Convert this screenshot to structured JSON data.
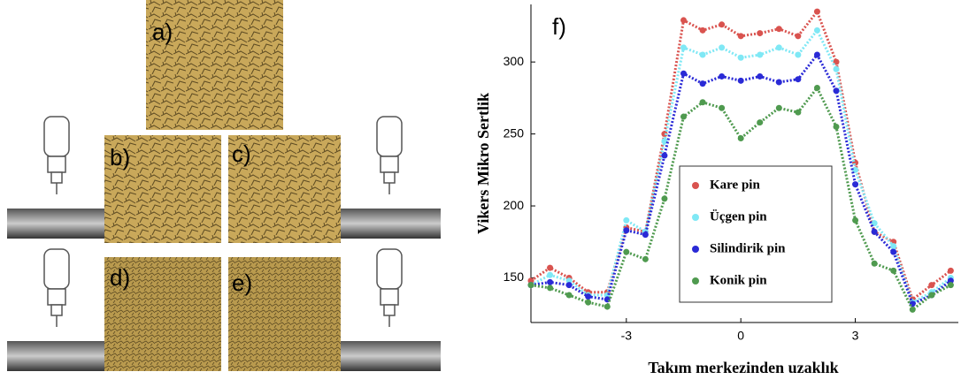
{
  "panels": [
    "a)",
    "b)",
    "c)",
    "d)",
    "e)"
  ],
  "chart_data": {
    "type": "scatter",
    "annotation": "f)",
    "x_label": "Takım merkezinden uzaklık",
    "y_label": "Vikers Mikro Sertlik",
    "x": [
      -5.5,
      -5,
      -4.5,
      -4,
      -3.5,
      -3,
      -2.5,
      -2,
      -1.5,
      -1,
      -0.5,
      0,
      0.5,
      1,
      1.5,
      2,
      2.5,
      3,
      3.5,
      4,
      4.5,
      5,
      5.5
    ],
    "series": [
      {
        "name": "Kare pin",
        "color": "#d9534f",
        "values": [
          148,
          157,
          150,
          140,
          140,
          185,
          182,
          250,
          329,
          322,
          326,
          318,
          320,
          323,
          318,
          335,
          300,
          230,
          182,
          175,
          135,
          145,
          155
        ]
      },
      {
        "name": "Üçgen pin",
        "color": "#7fe8f5",
        "values": [
          145,
          152,
          148,
          138,
          138,
          190,
          182,
          245,
          310,
          305,
          310,
          303,
          305,
          310,
          305,
          322,
          295,
          225,
          188,
          172,
          133,
          140,
          150
        ]
      },
      {
        "name": "Silindirik pin",
        "color": "#2a2ad6",
        "values": [
          145,
          147,
          145,
          137,
          135,
          183,
          180,
          235,
          292,
          285,
          290,
          287,
          290,
          286,
          288,
          305,
          280,
          215,
          182,
          168,
          132,
          138,
          148
        ]
      },
      {
        "name": "Konik pin",
        "color": "#4f9a4f",
        "values": [
          145,
          143,
          138,
          133,
          130,
          168,
          163,
          205,
          262,
          272,
          268,
          247,
          258,
          268,
          265,
          282,
          255,
          190,
          160,
          155,
          128,
          138,
          145
        ]
      }
    ],
    "xlim": [
      -5.5,
      5.7
    ],
    "xticks": [
      -3,
      0,
      3
    ],
    "ylim": [
      119,
      340
    ],
    "yticks": [
      150,
      200,
      250,
      300
    ]
  }
}
